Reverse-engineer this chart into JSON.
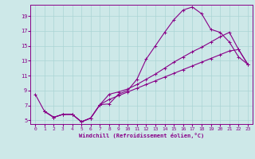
{
  "xlabel": "Windchill (Refroidissement éolien,°C)",
  "bg_color": "#cde8e8",
  "line_color": "#880088",
  "grid_color": "#aad4d4",
  "xmin": -0.5,
  "xmax": 23.5,
  "ymin": 4.5,
  "ymax": 20.5,
  "yticks": [
    5,
    7,
    9,
    11,
    13,
    15,
    17,
    19
  ],
  "xticks": [
    0,
    1,
    2,
    3,
    4,
    5,
    6,
    7,
    8,
    9,
    10,
    11,
    12,
    13,
    14,
    15,
    16,
    17,
    18,
    19,
    20,
    21,
    22,
    23
  ],
  "curve1_x": [
    0,
    1,
    2,
    3,
    4,
    5,
    6,
    7,
    8,
    9,
    10,
    11,
    12,
    13,
    14,
    15,
    16,
    17,
    18,
    19,
    20,
    21,
    22,
    23
  ],
  "curve1_y": [
    8.5,
    6.2,
    5.4,
    5.8,
    5.8,
    4.8,
    5.3,
    7.1,
    7.2,
    8.5,
    9.0,
    10.5,
    13.2,
    15.0,
    16.8,
    18.5,
    19.8,
    20.2,
    19.3,
    17.2,
    16.8,
    15.5,
    13.5,
    12.5
  ],
  "curve2_x": [
    1,
    2,
    3,
    4,
    5,
    6,
    7,
    8,
    9,
    10,
    11,
    12,
    13,
    14,
    15,
    16,
    17,
    18,
    19,
    20,
    21,
    22,
    23
  ],
  "curve2_y": [
    6.2,
    5.4,
    5.8,
    5.8,
    4.8,
    5.3,
    7.1,
    8.5,
    8.8,
    9.2,
    9.8,
    10.5,
    11.2,
    12.0,
    12.8,
    13.5,
    14.2,
    14.8,
    15.5,
    16.2,
    16.8,
    14.5,
    12.5
  ],
  "curve3_x": [
    1,
    2,
    3,
    4,
    5,
    6,
    7,
    8,
    9,
    10,
    11,
    12,
    13,
    14,
    15,
    16,
    17,
    18,
    19,
    20,
    21,
    22,
    23
  ],
  "curve3_y": [
    6.2,
    5.4,
    5.8,
    5.8,
    4.8,
    5.3,
    7.1,
    7.8,
    8.3,
    8.8,
    9.3,
    9.8,
    10.3,
    10.8,
    11.3,
    11.8,
    12.3,
    12.8,
    13.3,
    13.8,
    14.3,
    14.5,
    12.5
  ]
}
